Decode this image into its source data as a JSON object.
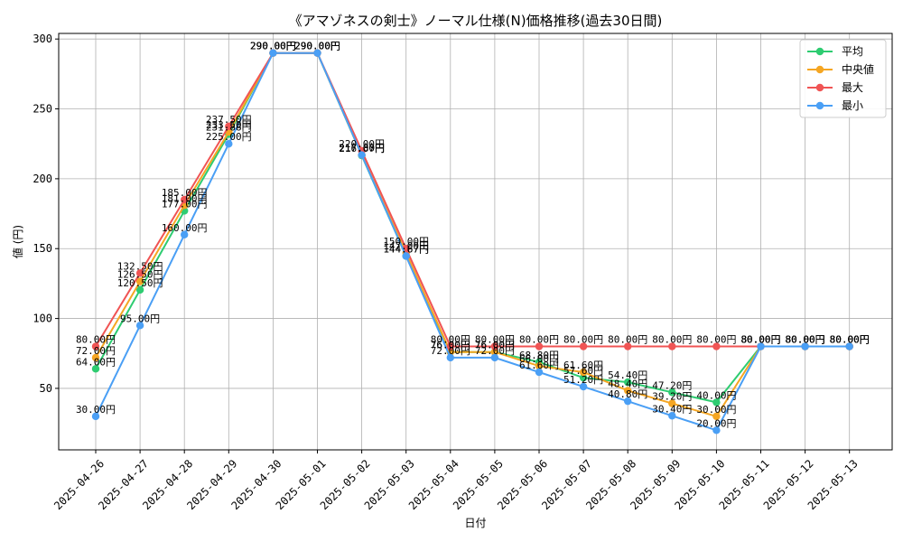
{
  "chart_data": {
    "type": "line",
    "title": "《アマゾネスの剣士》ノーマル仕様(N)価格推移(過去30日間)",
    "xlabel": "日付",
    "ylabel": "値 (円)",
    "ylim": [
      6,
      304
    ],
    "yticks": [
      50,
      100,
      150,
      200,
      250,
      300
    ],
    "grid": true,
    "legend_position": "top-right",
    "label_suffix": "円",
    "categories": [
      "2025-04-26",
      "2025-04-27",
      "2025-04-28",
      "2025-04-29",
      "2025-04-30",
      "2025-05-01",
      "2025-05-02",
      "2025-05-03",
      "2025-05-04",
      "2025-05-05",
      "2025-05-06",
      "2025-05-07",
      "2025-05-08",
      "2025-05-09",
      "2025-05-10",
      "2025-05-11",
      "2025-05-12",
      "2025-05-13"
    ],
    "series": [
      {
        "name": "平均",
        "color": "#2ecc71",
        "values": [
          64.0,
          120.5,
          177.0,
          231.88,
          290.0,
          290.0,
          216.67,
          144.67,
          76.0,
          76.0,
          68.8,
          57.6,
          54.4,
          47.2,
          40.0,
          80.0,
          80.0,
          80.0
        ]
      },
      {
        "name": "中央値",
        "color": "#f5a623",
        "values": [
          72.0,
          126.5,
          181.0,
          233.5,
          290.0,
          290.0,
          217.0,
          147.0,
          76.0,
          76.0,
          66.0,
          61.6,
          48.4,
          39.2,
          30.0,
          80.0,
          80.0,
          80.0
        ]
      },
      {
        "name": "最大",
        "color": "#f05454",
        "values": [
          80.0,
          132.5,
          185.0,
          237.5,
          290.0,
          290.0,
          220.0,
          150.0,
          80.0,
          80.0,
          80.0,
          80.0,
          80.0,
          80.0,
          80.0,
          80.0,
          80.0,
          80.0
        ]
      },
      {
        "name": "最小",
        "color": "#4a9ff5",
        "values": [
          30.0,
          95.0,
          160.0,
          225.0,
          290.0,
          290.0,
          217.0,
          144.67,
          72.0,
          72.0,
          61.6,
          51.2,
          40.8,
          30.4,
          20.0,
          80.0,
          80.0,
          80.0
        ]
      }
    ]
  }
}
